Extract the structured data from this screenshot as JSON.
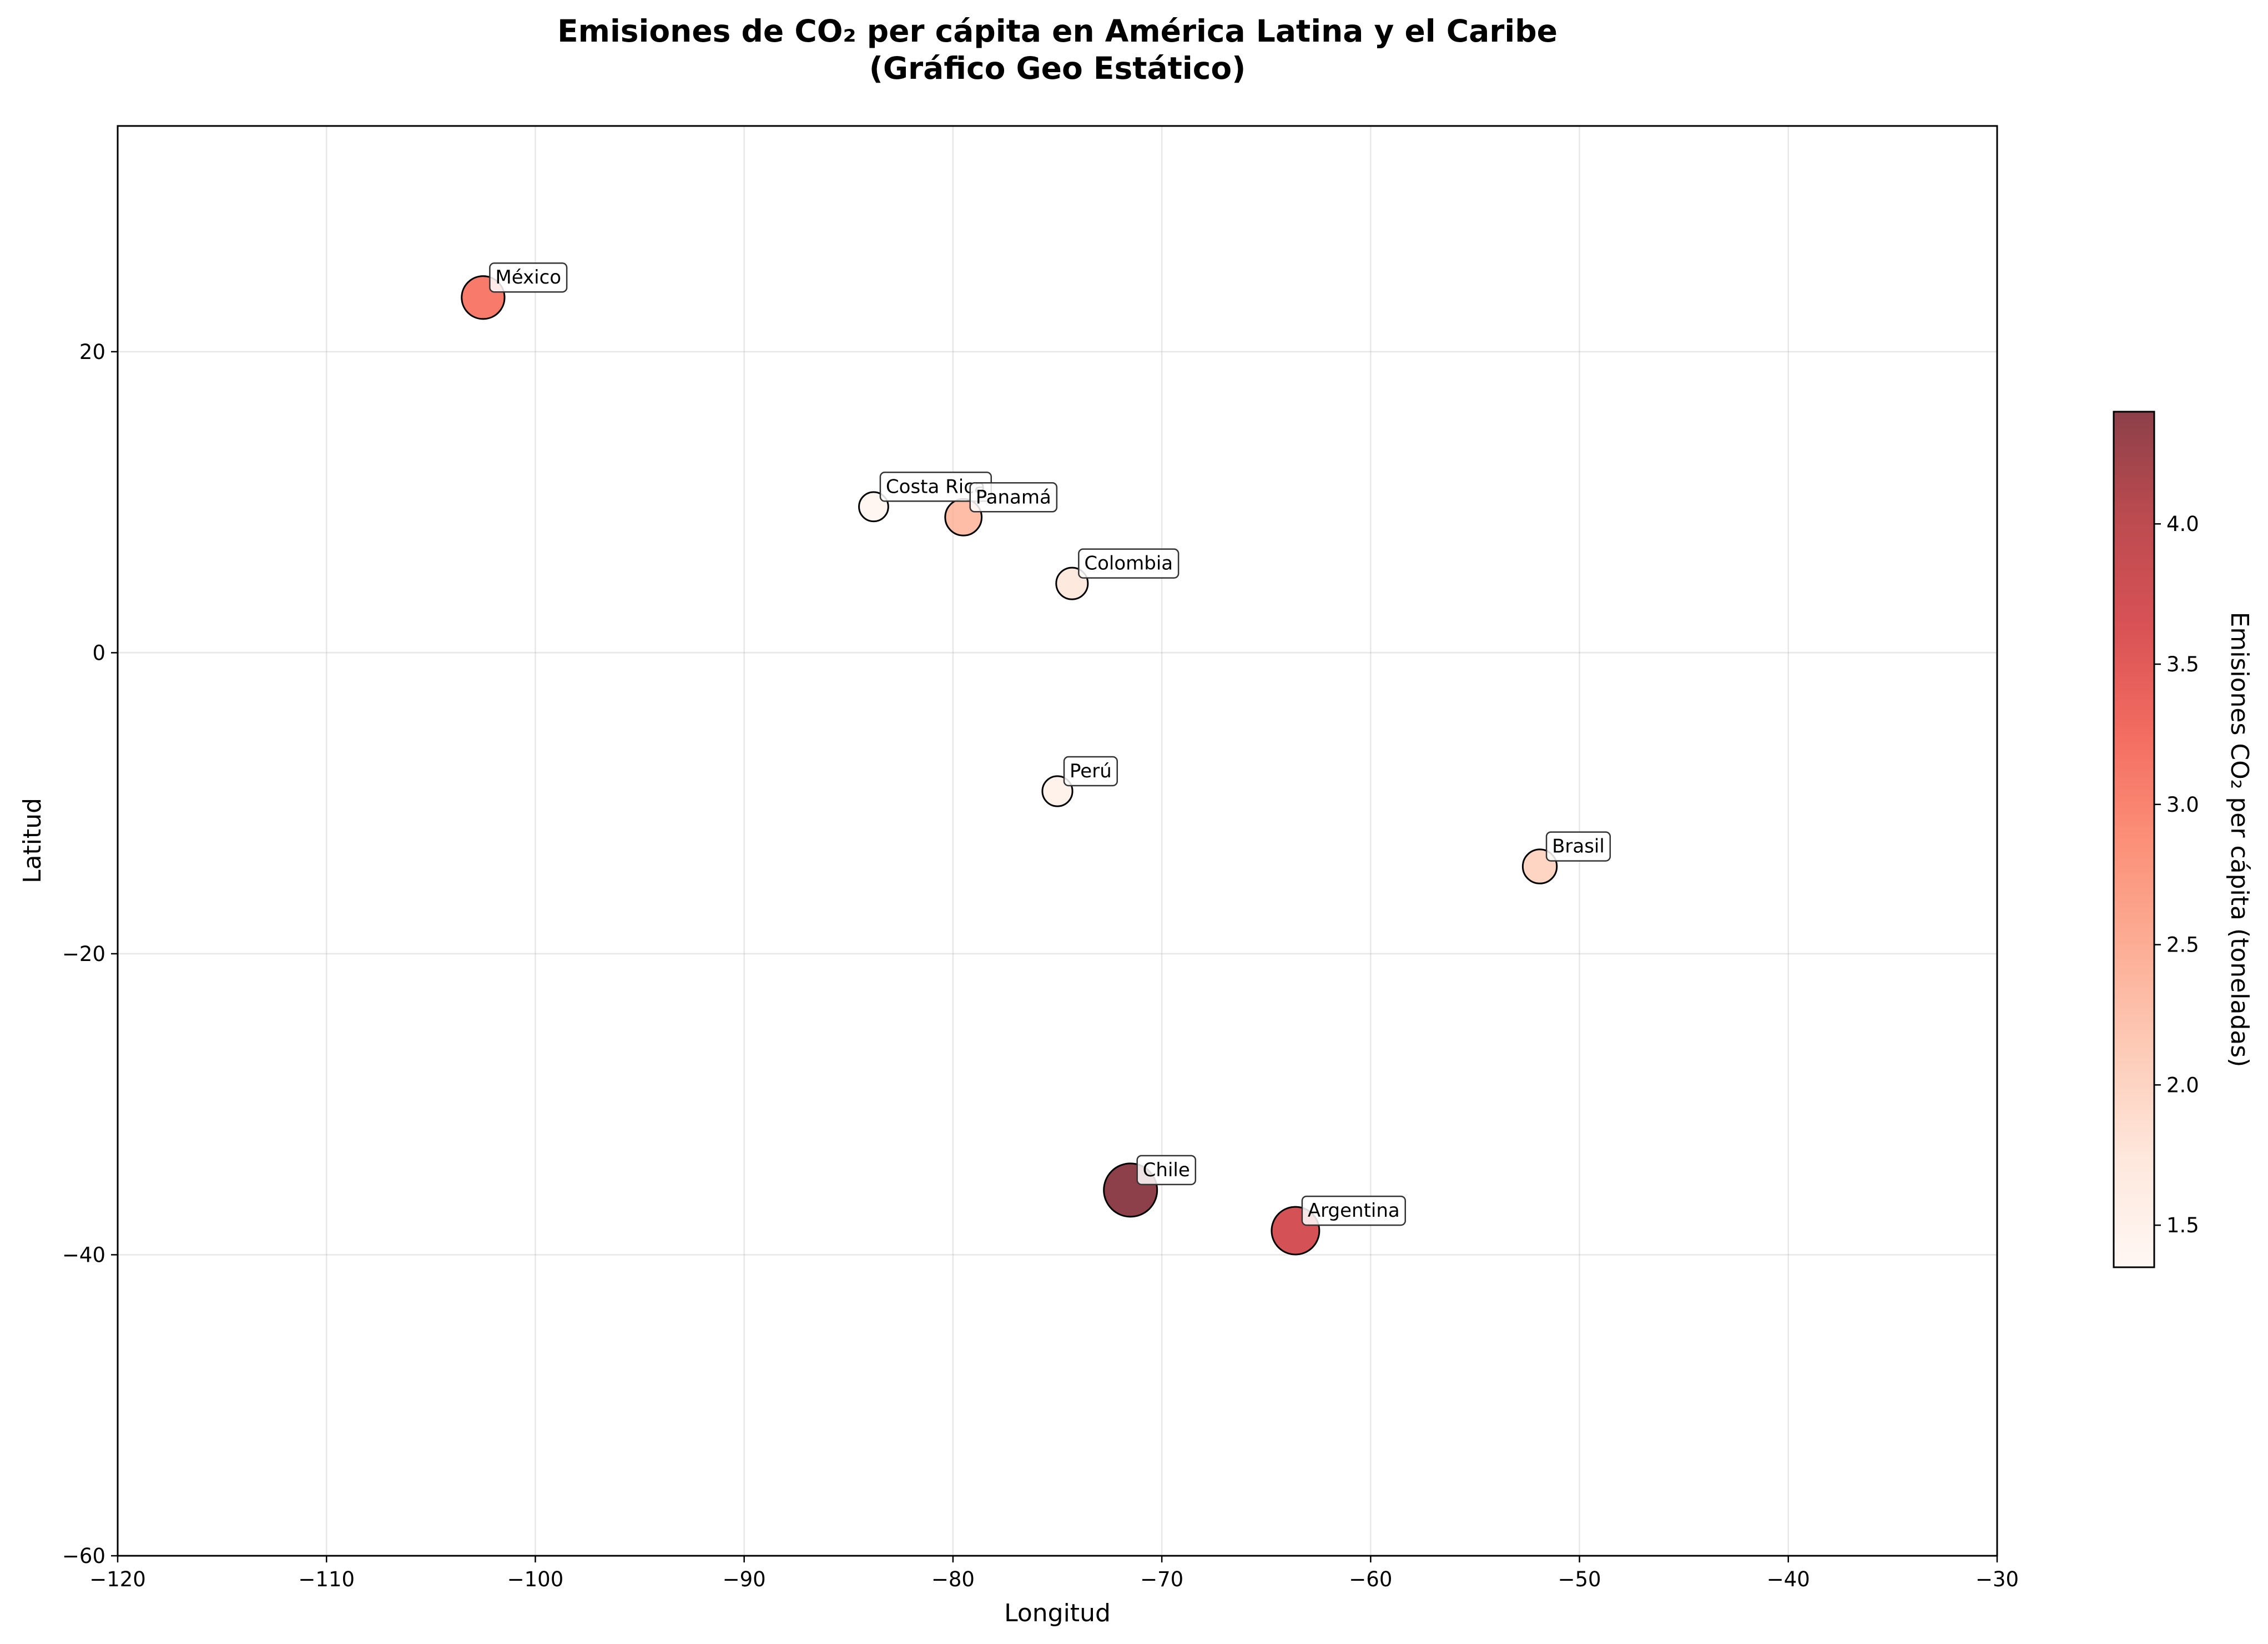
{
  "chart_data": {
    "type": "scatter",
    "title": "Emisiones de CO₂ per cápita en América Latina y el Caribe",
    "subtitle": "(Gráfico Geo Estático)",
    "xlabel": "Longitud",
    "ylabel": "Latitud",
    "xlim": [
      -120,
      -30
    ],
    "ylim": [
      -60,
      35
    ],
    "xticks": [
      -120,
      -110,
      -100,
      -90,
      -80,
      -70,
      -60,
      -50,
      -40,
      -30
    ],
    "yticks": [
      -60,
      -40,
      -20,
      0,
      20
    ],
    "grid": true,
    "colorbar": {
      "label": "Emisiones CO₂ per cápita (toneladas)",
      "range": [
        1.35,
        4.4
      ],
      "ticks": [
        1.5,
        2.0,
        2.5,
        3.0,
        3.5,
        4.0
      ],
      "colormap": "Reds",
      "colors": [
        "#fff5f0",
        "#fee0d2",
        "#fcbba1",
        "#fc9272",
        "#fb6a4a",
        "#ef3b2c",
        "#cb181d",
        "#a50f15",
        "#67000d"
      ]
    },
    "points": [
      {
        "name": "México",
        "x": -102.5,
        "y": 23.6,
        "value": 3.1
      },
      {
        "name": "Costa Rica",
        "x": -83.8,
        "y": 9.7,
        "value": 1.4
      },
      {
        "name": "Panamá",
        "x": -79.5,
        "y": 9.0,
        "value": 2.3
      },
      {
        "name": "Colombia",
        "x": -74.3,
        "y": 4.6,
        "value": 1.7
      },
      {
        "name": "Perú",
        "x": -75.0,
        "y": -9.2,
        "value": 1.5
      },
      {
        "name": "Brasil",
        "x": -51.9,
        "y": -14.2,
        "value": 2.0
      },
      {
        "name": "Chile",
        "x": -71.5,
        "y": -35.7,
        "value": 4.4
      },
      {
        "name": "Argentina",
        "x": -63.6,
        "y": -38.4,
        "value": 3.7
      }
    ]
  }
}
